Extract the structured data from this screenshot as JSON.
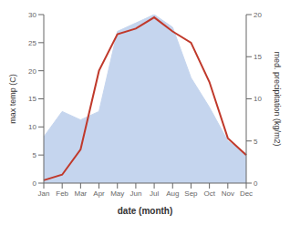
{
  "chart_data": {
    "type": "line",
    "xlabel": "date (month)",
    "ylabel": "max temp (C)",
    "y2label": "med. precipitation (kg/m2)",
    "categories": [
      "Jan",
      "Feb",
      "Mar",
      "Apr",
      "May",
      "Jun",
      "Jul",
      "Aug",
      "Sep",
      "Oct",
      "Nov",
      "Dec"
    ],
    "series": [
      {
        "type": "area",
        "axis": "y2",
        "color": "#c5d5ee",
        "values": [
          5.5,
          8.5,
          7.5,
          8.5,
          18.0,
          19.0,
          20.0,
          18.5,
          12.5,
          9.0,
          5.0,
          3.5
        ]
      },
      {
        "type": "line",
        "color": "#c0392b",
        "values": [
          0.5,
          1.5,
          6.0,
          20.0,
          26.5,
          27.5,
          29.5,
          27.0,
          25.0,
          18.0,
          8.0,
          5.0
        ]
      }
    ],
    "ylim": [
      0,
      30
    ],
    "yticks": [
      0,
      5,
      10,
      15,
      20,
      25,
      30
    ],
    "y2lim": [
      0,
      20
    ],
    "y2ticks": [
      0,
      5,
      10,
      15,
      20
    ],
    "grid": false
  }
}
